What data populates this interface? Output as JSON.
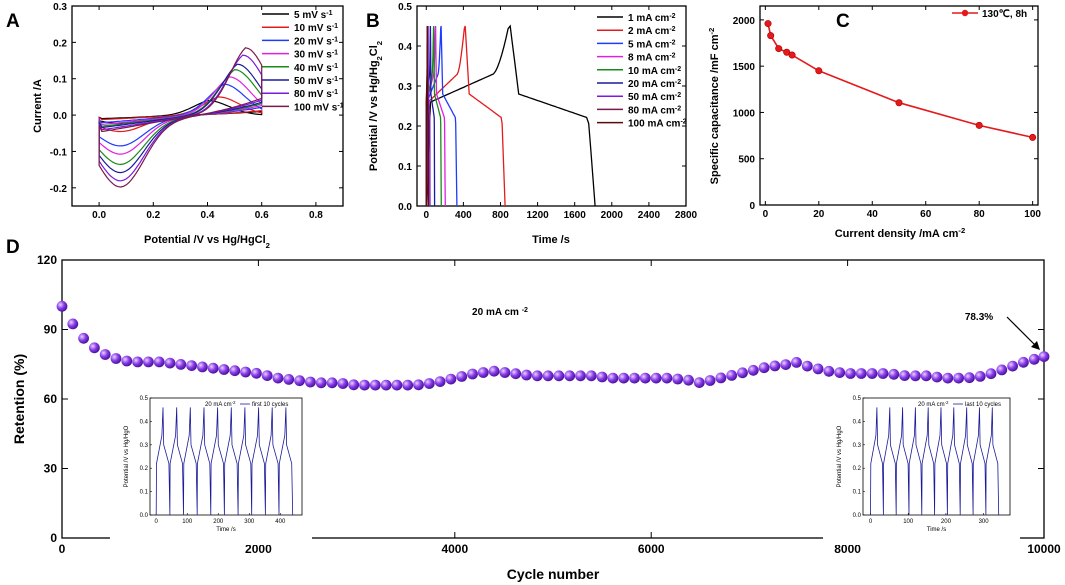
{
  "chart_data": [
    {
      "id": "A",
      "panel_label": "A",
      "type": "line",
      "subtype": "cyclic-voltammetry",
      "xlabel": "Potential /V vs Hg/HgCl",
      "xlabel_sub": "2",
      "ylabel": "Current /A",
      "xlim": [
        -0.1,
        0.9
      ],
      "ylim": [
        -0.25,
        0.3
      ],
      "xticks": [
        "0.0",
        "0.2",
        "0.4",
        "0.6",
        "0.8"
      ],
      "yticks": [
        "0.3",
        "0.2",
        "0.1",
        "0.0",
        "-0.1",
        "-0.2"
      ],
      "legend_suffix": "mV s",
      "legend_sup": "-1",
      "series": [
        {
          "name": "5",
          "color": "#000000",
          "i_max": 0.04,
          "i_min": -0.02,
          "peak_v": 0.4
        },
        {
          "name": "10",
          "color": "#e41a1c",
          "i_max": 0.05,
          "i_min": -0.04,
          "peak_v": 0.44
        },
        {
          "name": "20",
          "color": "#1f3bff",
          "i_max": 0.085,
          "i_min": -0.075,
          "peak_v": 0.46
        },
        {
          "name": "30",
          "color": "#e020e0",
          "i_max": 0.105,
          "i_min": -0.095,
          "peak_v": 0.48
        },
        {
          "name": "40",
          "color": "#1a8a1a",
          "i_max": 0.125,
          "i_min": -0.12,
          "peak_v": 0.5
        },
        {
          "name": "50",
          "color": "#1a1a9a",
          "i_max": 0.14,
          "i_min": -0.14,
          "peak_v": 0.51
        },
        {
          "name": "80",
          "color": "#7a1ae0",
          "i_max": 0.165,
          "i_min": -0.16,
          "peak_v": 0.53
        },
        {
          "name": "100",
          "color": "#7a1a4a",
          "i_max": 0.185,
          "i_min": -0.175,
          "peak_v": 0.54
        }
      ]
    },
    {
      "id": "B",
      "panel_label": "B",
      "type": "line",
      "subtype": "galvanostatic-charge-discharge",
      "xlabel": "Time /s",
      "ylabel": "Potential /V vs Hg/Hg",
      "ylabel_sub": "2",
      "ylabel_tail": "Cl",
      "ylabel_sub2": "2",
      "xlim": [
        -100,
        2800
      ],
      "ylim": [
        0.0,
        0.5
      ],
      "xticks": [
        "0",
        "400",
        "800",
        "1200",
        "1600",
        "2000",
        "2400",
        "2800"
      ],
      "yticks": [
        "0.5",
        "0.4",
        "0.3",
        "0.2",
        "0.1",
        "0.0"
      ],
      "legend_suffix": "mA cm",
      "legend_sup": "-2",
      "series": [
        {
          "name": "1",
          "color": "#000000",
          "charge_time_s": 905,
          "total_time_s": 1820
        },
        {
          "name": "2",
          "color": "#e41a1c",
          "charge_time_s": 420,
          "total_time_s": 850
        },
        {
          "name": "5",
          "color": "#1f3bff",
          "charge_time_s": 160,
          "total_time_s": 330
        },
        {
          "name": "8",
          "color": "#e020e0",
          "charge_time_s": 100,
          "total_time_s": 205
        },
        {
          "name": "10",
          "color": "#1a8a1a",
          "charge_time_s": 80,
          "total_time_s": 162
        },
        {
          "name": "20",
          "color": "#1a1a9a",
          "charge_time_s": 45,
          "total_time_s": 90
        },
        {
          "name": "50",
          "color": "#7a1ae0",
          "charge_time_s": 20,
          "total_time_s": 40
        },
        {
          "name": "80",
          "color": "#7a1a4a",
          "charge_time_s": 12,
          "total_time_s": 25
        },
        {
          "name": "100",
          "color": "#5a0a0a",
          "charge_time_s": 10,
          "total_time_s": 20
        }
      ]
    },
    {
      "id": "C",
      "panel_label": "C",
      "type": "line",
      "xlabel": "Current density /mA cm",
      "xlabel_sup": "-2",
      "ylabel": "Specific capacitance /mF cm",
      "ylabel_sup": "-2",
      "xlim": [
        -2,
        102
      ],
      "ylim": [
        0,
        2150
      ],
      "xticks": [
        "0",
        "20",
        "40",
        "60",
        "80",
        "100"
      ],
      "yticks": [
        "2000",
        "1500",
        "1000",
        "500",
        "0"
      ],
      "legend": "130℃, 8h",
      "color": "#e41a1c",
      "x": [
        1,
        2,
        5,
        8,
        10,
        20,
        50,
        80,
        100
      ],
      "y": [
        1960,
        1830,
        1690,
        1650,
        1620,
        1450,
        1105,
        860,
        730
      ]
    },
    {
      "id": "D",
      "panel_label": "D",
      "type": "scatter",
      "xlabel": "Cycle number",
      "ylabel": "Retention (%)",
      "xlim": [
        0,
        10000
      ],
      "ylim": [
        0,
        120
      ],
      "xticks": [
        "0",
        "2000",
        "4000",
        "6000",
        "8000",
        "10000"
      ],
      "yticks": [
        "120",
        "90",
        "60",
        "30",
        "0"
      ],
      "color": "#8a3ae8",
      "annotation_current": "20 mA cm",
      "annotation_current_sup": "-2",
      "annotation_final": "78.3%",
      "x": [
        0,
        100,
        200,
        300,
        400,
        500,
        600,
        700,
        800,
        900,
        1000,
        1200,
        1400,
        1600,
        1800,
        2000,
        2200,
        2400,
        2600,
        2800,
        3000,
        3200,
        3400,
        3600,
        3800,
        4000,
        4200,
        4400,
        4600,
        4800,
        5000,
        5200,
        5400,
        5600,
        5800,
        6000,
        6200,
        6400,
        6500,
        6600,
        6800,
        7000,
        7200,
        7400,
        7500,
        7600,
        7800,
        8000,
        8200,
        8400,
        8600,
        8800,
        9000,
        9200,
        9400,
        9600,
        9800,
        10000
      ],
      "y": [
        100,
        93,
        87,
        83,
        80,
        78,
        77,
        76,
        76,
        76,
        76,
        75,
        74,
        73,
        72,
        71,
        69,
        68,
        67,
        67,
        66,
        66,
        66,
        66,
        67,
        69,
        71,
        72,
        71,
        70,
        70,
        70,
        70,
        69,
        69,
        69,
        69,
        68,
        67,
        68,
        70,
        72,
        74,
        75,
        76,
        74,
        72,
        71,
        71,
        71,
        70,
        70,
        69,
        69,
        70,
        73,
        76,
        78.3
      ],
      "insets": [
        {
          "legend_current": "20 mA cm",
          "legend_sup": "-2",
          "legend_series": "first 10 cycles",
          "xlabel": "Time /s",
          "ylabel": "Potential /V vs Hg/HgO",
          "xlim": [
            -20,
            470
          ],
          "ylim": [
            0.0,
            0.5
          ],
          "xticks": [
            "0",
            "100",
            "200",
            "300",
            "400"
          ],
          "yticks": [
            "0.5",
            "0.4",
            "0.3",
            "0.2",
            "0.1",
            "0.0"
          ],
          "cycles": 10,
          "cycle_period_s": 44,
          "color": "#1a1a9a"
        },
        {
          "legend_current": "20 mA cm",
          "legend_sup": "-2",
          "legend_series": "last 10 cycles",
          "xlabel": "Time /s",
          "ylabel": "Potential /V vs Hg/HgO",
          "xlim": [
            -20,
            370
          ],
          "ylim": [
            0.0,
            0.5
          ],
          "xticks": [
            "0",
            "100",
            "200",
            "300"
          ],
          "yticks": [
            "0.5",
            "0.4",
            "0.3",
            "0.2",
            "0.1",
            "0.0"
          ],
          "cycles": 10,
          "cycle_period_s": 34,
          "color": "#1a1a9a"
        }
      ]
    }
  ]
}
